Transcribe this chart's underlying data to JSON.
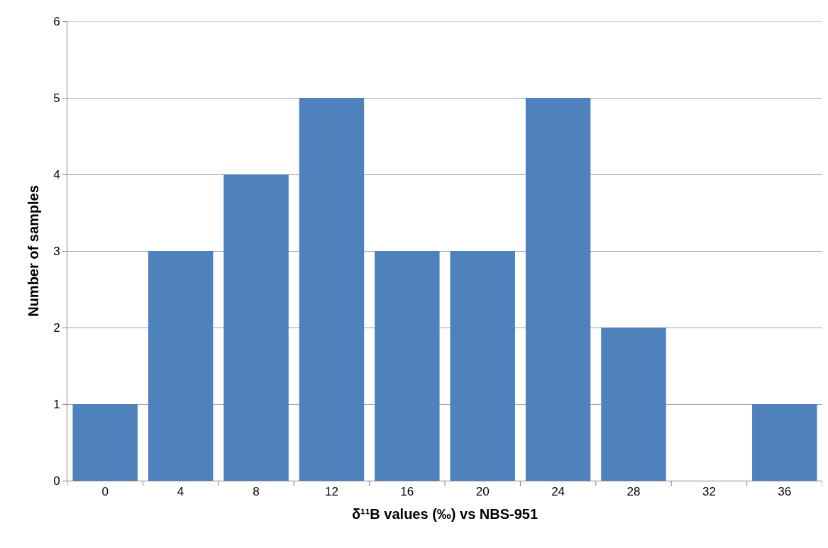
{
  "chart_data": {
    "type": "bar",
    "xlabel": "δ¹¹B values (‰) vs NBS-951",
    "ylabel": "Number of samples",
    "categories": [
      "0",
      "4",
      "8",
      "12",
      "16",
      "20",
      "24",
      "28",
      "32",
      "36"
    ],
    "values": [
      1,
      3,
      4,
      5,
      3,
      3,
      5,
      2,
      0,
      1
    ],
    "color": "#4f81bd",
    "ylim": [
      0,
      6
    ],
    "yticks": [
      0,
      1,
      2,
      3,
      4,
      5,
      6
    ],
    "grid": "y"
  }
}
